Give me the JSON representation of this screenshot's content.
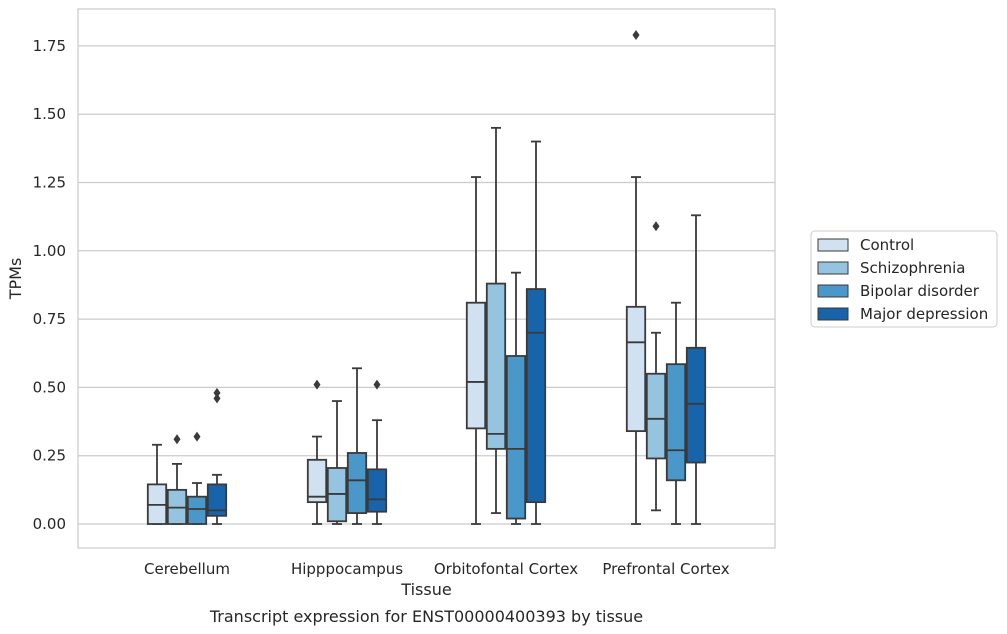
{
  "chart_data": {
    "type": "box",
    "caption": "Transcript expression for ENST00000400393 by tissue",
    "xlabel": "Tissue",
    "ylabel": "TPMs",
    "ylim": [
      -0.085,
      1.88
    ],
    "yticks": [
      0.0,
      0.25,
      0.5,
      0.75,
      1.0,
      1.25,
      1.5,
      1.75
    ],
    "ytick_labels": [
      "0.00",
      "0.25",
      "0.50",
      "0.75",
      "1.00",
      "1.25",
      "1.50",
      "1.75"
    ],
    "grid": "horizontal",
    "legend_position": "right, outside plot",
    "categories": [
      "Cerebellum",
      "Hipppocampus",
      "Orbitofontal Cortex",
      "Prefrontal Cortex"
    ],
    "series": [
      {
        "name": "Control",
        "color": "#d0e1f2",
        "boxes": [
          {
            "whislo": 0.0,
            "q1": 0.0,
            "med": 0.07,
            "q3": 0.145,
            "whishi": 0.29,
            "fliers": []
          },
          {
            "whislo": 0.0,
            "q1": 0.08,
            "med": 0.1,
            "q3": 0.235,
            "whishi": 0.32,
            "fliers": [
              0.51
            ]
          },
          {
            "whislo": 0.0,
            "q1": 0.35,
            "med": 0.52,
            "q3": 0.81,
            "whishi": 1.27,
            "fliers": []
          },
          {
            "whislo": 0.0,
            "q1": 0.34,
            "med": 0.665,
            "q3": 0.795,
            "whishi": 1.27,
            "fliers": [
              1.79
            ]
          }
        ]
      },
      {
        "name": "Schizophrenia",
        "color": "#94c4df",
        "boxes": [
          {
            "whislo": 0.0,
            "q1": 0.0,
            "med": 0.06,
            "q3": 0.125,
            "whishi": 0.22,
            "fliers": [
              0.31
            ]
          },
          {
            "whislo": 0.0,
            "q1": 0.01,
            "med": 0.11,
            "q3": 0.205,
            "whishi": 0.45,
            "fliers": []
          },
          {
            "whislo": 0.04,
            "q1": 0.275,
            "med": 0.33,
            "q3": 0.88,
            "whishi": 1.45,
            "fliers": []
          },
          {
            "whislo": 0.05,
            "q1": 0.24,
            "med": 0.385,
            "q3": 0.55,
            "whishi": 0.7,
            "fliers": [
              1.09
            ]
          }
        ]
      },
      {
        "name": "Bipolar disorder",
        "color": "#4a98c9",
        "boxes": [
          {
            "whislo": 0.0,
            "q1": 0.0,
            "med": 0.055,
            "q3": 0.1,
            "whishi": 0.15,
            "fliers": [
              0.32
            ]
          },
          {
            "whislo": 0.0,
            "q1": 0.04,
            "med": 0.16,
            "q3": 0.26,
            "whishi": 0.57,
            "fliers": []
          },
          {
            "whislo": 0.0,
            "q1": 0.02,
            "med": 0.275,
            "q3": 0.615,
            "whishi": 0.92,
            "fliers": []
          },
          {
            "whislo": 0.0,
            "q1": 0.16,
            "med": 0.27,
            "q3": 0.585,
            "whishi": 0.81,
            "fliers": []
          }
        ]
      },
      {
        "name": "Major depression",
        "color": "#1764ab",
        "boxes": [
          {
            "whislo": 0.0,
            "q1": 0.03,
            "med": 0.05,
            "q3": 0.145,
            "whishi": 0.18,
            "fliers": [
              0.46,
              0.48
            ]
          },
          {
            "whislo": 0.0,
            "q1": 0.045,
            "med": 0.09,
            "q3": 0.2,
            "whishi": 0.38,
            "fliers": [
              0.51
            ]
          },
          {
            "whislo": 0.0,
            "q1": 0.08,
            "med": 0.7,
            "q3": 0.86,
            "whishi": 1.4,
            "fliers": []
          },
          {
            "whislo": 0.0,
            "q1": 0.225,
            "med": 0.44,
            "q3": 0.645,
            "whishi": 1.13,
            "fliers": []
          }
        ]
      }
    ]
  }
}
